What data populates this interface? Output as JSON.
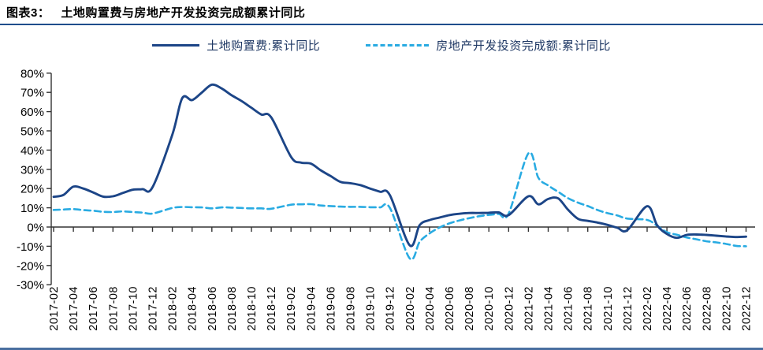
{
  "header": {
    "label": "图表3：",
    "title": "土地购置费与房地产开发投资完成额累计同比"
  },
  "legend": [
    {
      "name": "土地购置费:累计同比",
      "style": "solid",
      "color": "#1C4587"
    },
    {
      "name": "房地产开发投资完成额:累计同比",
      "style": "dashed",
      "color": "#29ABE2"
    }
  ],
  "chart_data": {
    "type": "line",
    "title": "土地购置费与房地产开发投资完成额累计同比",
    "ylim": [
      -30,
      80
    ],
    "y_tick_labels": [
      "80%",
      "70%",
      "60%",
      "50%",
      "40%",
      "30%",
      "20%",
      "10%",
      "0%",
      "-10%",
      "-20%",
      "-30%"
    ],
    "x_tick_labels": [
      "2017-02",
      "2017-04",
      "2017-06",
      "2017-08",
      "2017-10",
      "2017-12",
      "2018-02",
      "2018-04",
      "2018-06",
      "2018-08",
      "2018-10",
      "2018-12",
      "2019-02",
      "2019-04",
      "2019-06",
      "2019-08",
      "2019-10",
      "2019-12",
      "2020-02",
      "2020-04",
      "2020-06",
      "2020-08",
      "2020-10",
      "2020-12",
      "2021-02",
      "2021-04",
      "2021-06",
      "2021-08",
      "2021-10",
      "2021-12",
      "2022-02",
      "2022-04",
      "2022-06",
      "2022-08",
      "2022-10",
      "2022-12"
    ],
    "months": [
      "2017-02",
      "2017-03",
      "2017-04",
      "2017-05",
      "2017-06",
      "2017-07",
      "2017-08",
      "2017-09",
      "2017-10",
      "2017-11",
      "2017-12",
      "2018-02",
      "2018-03",
      "2018-04",
      "2018-05",
      "2018-06",
      "2018-07",
      "2018-08",
      "2018-09",
      "2018-10",
      "2018-11",
      "2018-12",
      "2019-02",
      "2019-03",
      "2019-04",
      "2019-05",
      "2019-06",
      "2019-07",
      "2019-08",
      "2019-09",
      "2019-10",
      "2019-11",
      "2019-12",
      "2020-02",
      "2020-03",
      "2020-04",
      "2020-05",
      "2020-06",
      "2020-07",
      "2020-08",
      "2020-09",
      "2020-10",
      "2020-11",
      "2020-12",
      "2021-02",
      "2021-03",
      "2021-04",
      "2021-05",
      "2021-06",
      "2021-07",
      "2021-08",
      "2021-09",
      "2021-10",
      "2021-11",
      "2021-12",
      "2022-02",
      "2022-03",
      "2022-04",
      "2022-05",
      "2022-06",
      "2022-07",
      "2022-08",
      "2022-09",
      "2022-10",
      "2022-11",
      "2022-12"
    ],
    "series": [
      {
        "name": "土地购置费:累计同比",
        "color": "#1C4587",
        "dash": false,
        "values": [
          15.7,
          16.7,
          21,
          20,
          18,
          15.8,
          16,
          17.7,
          19.4,
          19.7,
          20.7,
          48,
          67,
          66,
          70,
          74,
          72,
          68.5,
          65.5,
          62,
          58.5,
          57,
          36.5,
          33.5,
          33,
          29.5,
          26.5,
          23.5,
          22.8,
          21.8,
          20,
          18.3,
          16.5,
          -9.5,
          1,
          3.6,
          4.9,
          6.2,
          6.9,
          7.3,
          7.3,
          7.4,
          7.6,
          6.2,
          16,
          11.8,
          14.6,
          14.9,
          9,
          4.3,
          3.2,
          2.3,
          1.1,
          -0.4,
          -1.6,
          10.8,
          1,
          -3.6,
          -5.6,
          -4.1,
          -3.9,
          -4.1,
          -4.5,
          -4.9,
          -5.2,
          -5
        ]
      },
      {
        "name": "房地产开发投资完成额:累计同比",
        "color": "#29ABE2",
        "dash": true,
        "values": [
          8.9,
          9.1,
          9.3,
          8.8,
          8.5,
          7.9,
          7.8,
          8.1,
          7.8,
          7.5,
          7.0,
          9.9,
          10.4,
          10.3,
          10.2,
          9.7,
          10.2,
          10.1,
          9.9,
          9.7,
          9.7,
          9.5,
          11.6,
          11.8,
          11.9,
          11.2,
          10.9,
          10.6,
          10.5,
          10.5,
          10.3,
          10.2,
          9.9,
          -16.3,
          -7.7,
          -3.3,
          -0.3,
          1.9,
          3.4,
          4.6,
          5.6,
          6.3,
          6.8,
          7.0,
          38.3,
          25.6,
          21.6,
          18.3,
          15.0,
          12.7,
          10.9,
          8.8,
          7.2,
          6.0,
          4.4,
          3.7,
          0.7,
          -2.7,
          -4.0,
          -5.4,
          -6.4,
          -7.4,
          -8.0,
          -8.8,
          -9.8,
          -10.0
        ]
      }
    ],
    "legend_position": "top-center",
    "grid": false
  }
}
